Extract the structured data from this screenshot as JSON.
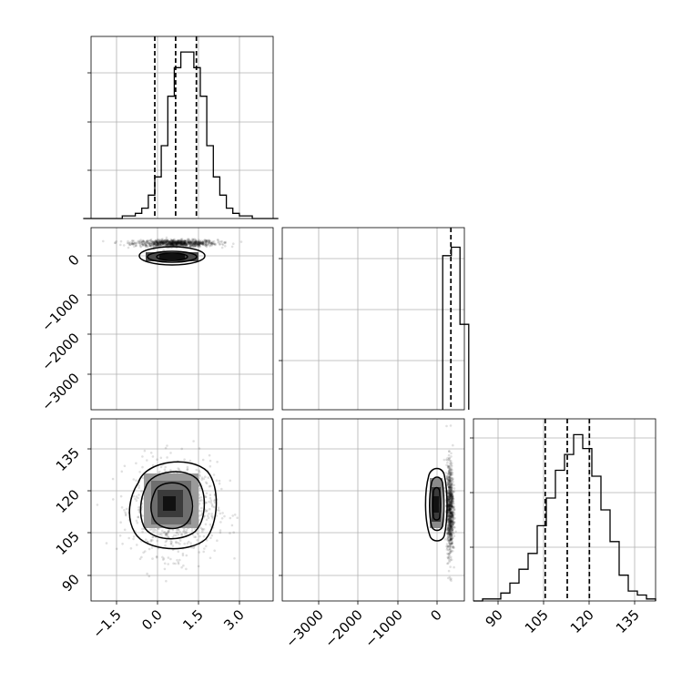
{
  "chart_data": [
    {
      "panel": "hist-p0",
      "type": "bar",
      "x": [
        -3.0,
        -2.75,
        -2.5,
        -2.25,
        -2.0,
        -1.75,
        -1.5,
        -1.25,
        -1.0,
        -0.75,
        -0.5,
        -0.25,
        0.0,
        0.25,
        0.5,
        0.75,
        1.0,
        1.25,
        1.5,
        1.75,
        2.0,
        2.25,
        2.5,
        2.75,
        3.0,
        3.25,
        3.5,
        3.75,
        4.0,
        4.25
      ],
      "values": [
        0,
        0,
        0,
        0,
        0,
        0,
        1,
        1,
        2,
        4,
        9,
        16,
        28,
        47,
        58,
        64,
        64,
        58,
        47,
        28,
        16,
        9,
        4,
        2,
        1,
        1,
        0,
        0,
        0,
        0
      ],
      "quantiles": [
        -0.25,
        0.55,
        1.35
      ],
      "xlim": [
        -2.7,
        4.3
      ],
      "ylim": [
        0,
        70
      ],
      "grid": true
    },
    {
      "panel": "scatter-p1-vs-p0",
      "type": "scatter",
      "xlim": [
        -2.7,
        4.3
      ],
      "ylim": [
        -3900,
        300
      ],
      "center": [
        0.55,
        -60
      ],
      "spread": [
        0.8,
        40
      ],
      "grid": true
    },
    {
      "panel": "hist-p1",
      "type": "bar",
      "x": [
        -200,
        0,
        200
      ],
      "values": [
        110,
        116,
        61
      ],
      "quantiles": [
        -10
      ],
      "xlim": [
        -3900,
        300
      ],
      "ylim": [
        0,
        130
      ],
      "grid": true
    },
    {
      "panel": "scatter-p2-vs-p0",
      "type": "scatter",
      "xlim": [
        -2.7,
        4.3
      ],
      "ylim": [
        82,
        145
      ],
      "center": [
        0.55,
        114
      ],
      "spread": [
        0.8,
        8
      ],
      "grid": true
    },
    {
      "panel": "scatter-p2-vs-p1",
      "type": "scatter",
      "xlim": [
        -3900,
        300
      ],
      "ylim": [
        82,
        145
      ],
      "center": [
        -30,
        114
      ],
      "spread": [
        40,
        8
      ],
      "grid": true
    },
    {
      "panel": "hist-p2",
      "type": "bar",
      "x": [
        80,
        83.3,
        86.6,
        89.9,
        93.2,
        96.5,
        99.8,
        103.1,
        106.4,
        109.7,
        113,
        116.3,
        119.6,
        122.9,
        126.2,
        129.5,
        132.8,
        136.1,
        139.4,
        142.7
      ],
      "values": [
        0,
        1,
        1,
        4,
        9,
        16,
        24,
        38,
        52,
        66,
        74,
        84,
        77,
        63,
        46,
        30,
        13,
        5,
        3,
        1
      ],
      "quantiles": [
        106,
        114,
        122
      ],
      "xlim": [
        80,
        146
      ],
      "ylim": [
        0,
        92
      ],
      "grid": true
    }
  ],
  "axes": {
    "p0_ticks": [
      "−1.5",
      "0.0",
      "1.5",
      "3.0"
    ],
    "p1_row_ticks": [
      "0",
      "−1000",
      "−2000",
      "−3000"
    ],
    "p1_col_ticks": [
      "−3000",
      "−2000",
      "−1000",
      "0"
    ],
    "p2_row_ticks": [
      "135",
      "120",
      "105",
      "90"
    ],
    "p2_col_ticks": [
      "90",
      "105",
      "120",
      "135"
    ]
  }
}
